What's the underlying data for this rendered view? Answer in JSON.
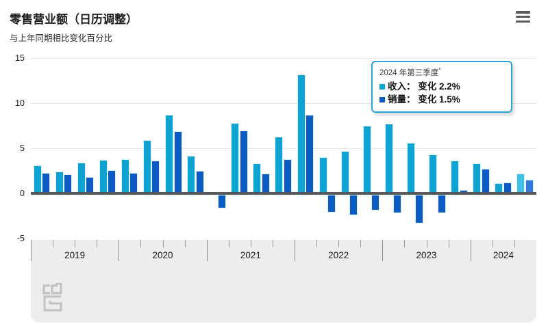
{
  "header": {
    "title": "零售营业额（日历调整）",
    "subtitle": "与上年同期相比变化百分比"
  },
  "icons": {
    "menu": "hamburger-menu-icon",
    "logo": "cbs-logo"
  },
  "legend": {
    "period": "2024 年第三季度",
    "superscript": "*",
    "items": [
      {
        "label": "收入： 变化 2.2%",
        "color": "#0da3d2"
      },
      {
        "label": "销量： 变化 1.5%",
        "color": "#0b5bc2"
      }
    ]
  },
  "chart_data": {
    "type": "bar",
    "title": "零售营业额（日历调整）",
    "subtitle": "与上年同期相比变化百分比",
    "ylabel": "与上年同期相比变化百分比",
    "ylim": [
      -5,
      15
    ],
    "yticks": [
      15,
      10,
      5,
      0,
      -5
    ],
    "grid": true,
    "legend_position": "top-right",
    "x_year_labels": [
      "2019",
      "2020",
      "2021",
      "2022",
      "2023",
      "2024"
    ],
    "categories": [
      "2019 Q1",
      "2019 Q2",
      "2019 Q3",
      "2019 Q4",
      "2020 Q1",
      "2020 Q2",
      "2020 Q3",
      "2020 Q4",
      "2021 Q1",
      "2021 Q2",
      "2021 Q3",
      "2021 Q4",
      "2022 Q1",
      "2022 Q2",
      "2022 Q3",
      "2022 Q4",
      "2023 Q1",
      "2023 Q2",
      "2023 Q3",
      "2023 Q4",
      "2024 Q1",
      "2024 Q2",
      "2024 Q3"
    ],
    "series": [
      {
        "name": "收入",
        "values": [
          3.1,
          2.4,
          3.4,
          3.7,
          3.8,
          5.9,
          8.7,
          4.2,
          0.0,
          7.8,
          3.3,
          6.3,
          13.2,
          4.0,
          4.7,
          7.5,
          7.7,
          5.6,
          4.3,
          3.6,
          3.3,
          1.1,
          2.2
        ],
        "color": "#0da3d2",
        "provisional_color": "#41c0e8"
      },
      {
        "name": "销量",
        "values": [
          2.3,
          2.1,
          1.8,
          2.6,
          2.3,
          3.6,
          6.9,
          2.5,
          -1.7,
          7.0,
          2.2,
          3.8,
          8.7,
          -2.1,
          -2.4,
          -1.9,
          -2.2,
          -3.3,
          -2.2,
          0.4,
          2.7,
          1.2,
          1.5
        ],
        "color": "#0b5bc2",
        "provisional_color": "#327ad9"
      }
    ],
    "provisional_last_n": 1
  },
  "colors": {
    "grid": "#e6e6e6",
    "zero_axis": "#58585a",
    "band": "#ededed",
    "legend_border": "#2aa6d6",
    "bar_outline": "#d9effa"
  }
}
